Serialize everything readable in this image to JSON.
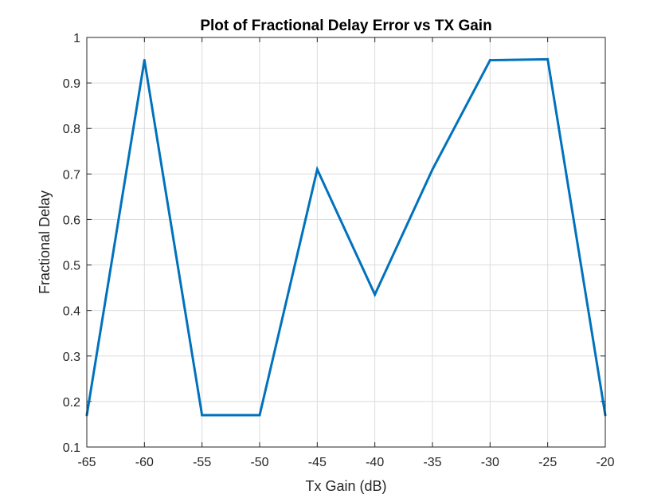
{
  "chart_data": {
    "type": "line",
    "title": "Plot of Fractional Delay Error vs TX Gain",
    "xlabel": "Tx Gain (dB)",
    "ylabel": "Fractional Delay",
    "xlim": [
      -65,
      -20
    ],
    "ylim": [
      0.1,
      1
    ],
    "xticks": [
      -65,
      -60,
      -55,
      -50,
      -45,
      -40,
      -35,
      -30,
      -25,
      -20
    ],
    "xtick_labels": [
      "-65",
      "-60",
      "-55",
      "-50",
      "-45",
      "-40",
      "-35",
      "-30",
      "-25",
      "-20"
    ],
    "yticks": [
      0.1,
      0.2,
      0.3,
      0.4,
      0.5,
      0.6,
      0.7,
      0.8,
      0.9,
      1
    ],
    "ytick_labels": [
      "0.1",
      "0.2",
      "0.3",
      "0.4",
      "0.5",
      "0.6",
      "0.7",
      "0.8",
      "0.9",
      "1"
    ],
    "grid": true,
    "legend": "none",
    "colors": {
      "series": "#0072BD",
      "axes": "#262626",
      "grid": "#dcdcdc"
    },
    "x": [
      -65,
      -60,
      -55,
      -50,
      -45,
      -40,
      -35,
      -30,
      -25,
      -20
    ],
    "series": [
      {
        "values": [
          0.17,
          0.95,
          0.17,
          0.17,
          0.71,
          0.435,
          0.71,
          0.95,
          0.952,
          0.17
        ]
      }
    ]
  }
}
